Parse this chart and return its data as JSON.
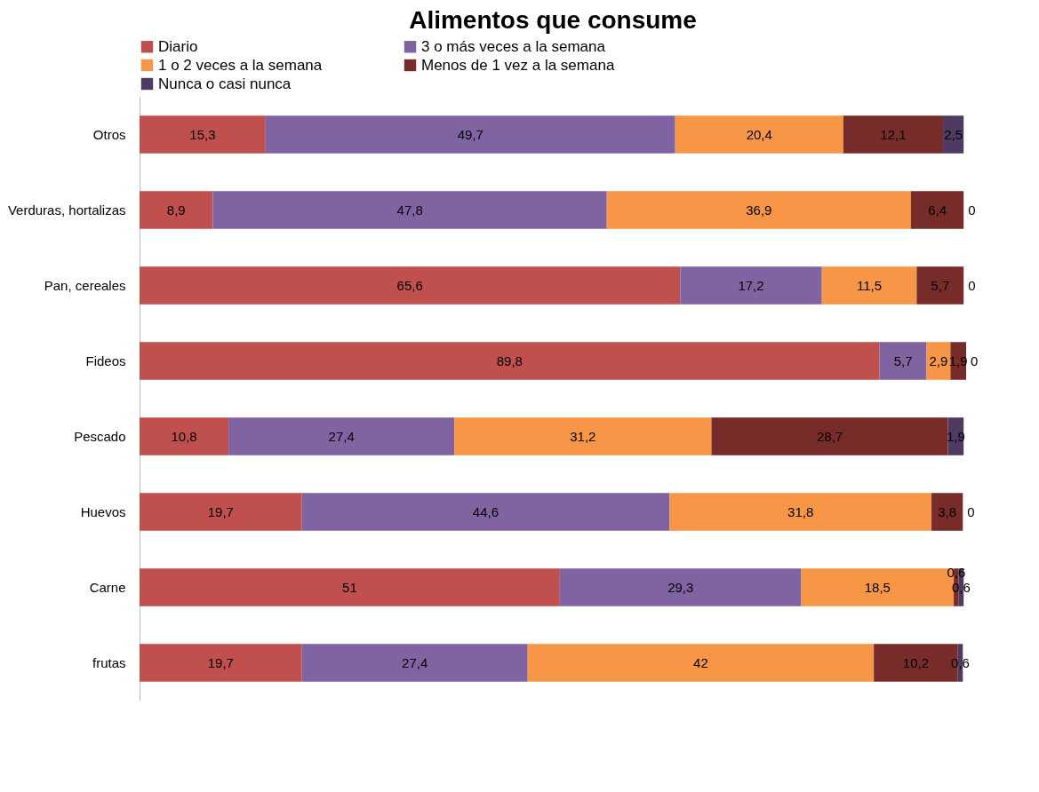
{
  "chart_data": {
    "type": "bar",
    "orientation": "horizontal",
    "stacked": true,
    "title": "Alimentos que consume",
    "legend": "top",
    "grid": false,
    "categories": [
      "Otros",
      "Verduras, hortalizas",
      "Pan, cereales",
      "Fideos",
      "Pescado",
      "Huevos",
      "Carne",
      "frutas"
    ],
    "series": [
      {
        "name": "Diario",
        "color": "#c0504d",
        "values": [
          15.3,
          8.9,
          65.6,
          89.8,
          10.8,
          19.7,
          51,
          19.7
        ],
        "value_labels": [
          "15,3",
          "8,9",
          "65,6",
          "89,8",
          "10,8",
          "19,7",
          "51",
          "19,7"
        ]
      },
      {
        "name": "3 o más veces a la semana",
        "color": "#8064a2",
        "values": [
          49.7,
          47.8,
          17.2,
          5.7,
          27.4,
          44.6,
          29.3,
          27.4
        ],
        "value_labels": [
          "49,7",
          "47,8",
          "17,2",
          "5,7",
          "27,4",
          "44,6",
          "29,3",
          "27,4"
        ]
      },
      {
        "name": "1 o 2 veces a la semana",
        "color": "#f79646",
        "values": [
          20.4,
          36.9,
          11.5,
          2.9,
          31.2,
          31.8,
          18.5,
          42
        ],
        "value_labels": [
          "20,4",
          "36,9",
          "11,5",
          "2,9",
          "31,2",
          "31,8",
          "18,5",
          "42"
        ]
      },
      {
        "name": "Menos de 1 vez a la semana",
        "color": "#772c2a",
        "values": [
          12.1,
          6.4,
          5.7,
          1.9,
          28.7,
          3.8,
          0.6,
          10.2
        ],
        "value_labels": [
          "12,1",
          "6,4",
          "5,7",
          "1,9",
          "28,7",
          "3,8",
          "0,6",
          "10,2"
        ]
      },
      {
        "name": "Nunca o casi nunca",
        "color": "#4f3b62",
        "values": [
          2.5,
          0,
          0,
          0,
          1.9,
          0,
          0.6,
          0.6
        ],
        "value_labels": [
          "2,5",
          "0",
          "0",
          "0",
          "1,9",
          "0",
          "0,6",
          "0,6"
        ]
      }
    ]
  }
}
